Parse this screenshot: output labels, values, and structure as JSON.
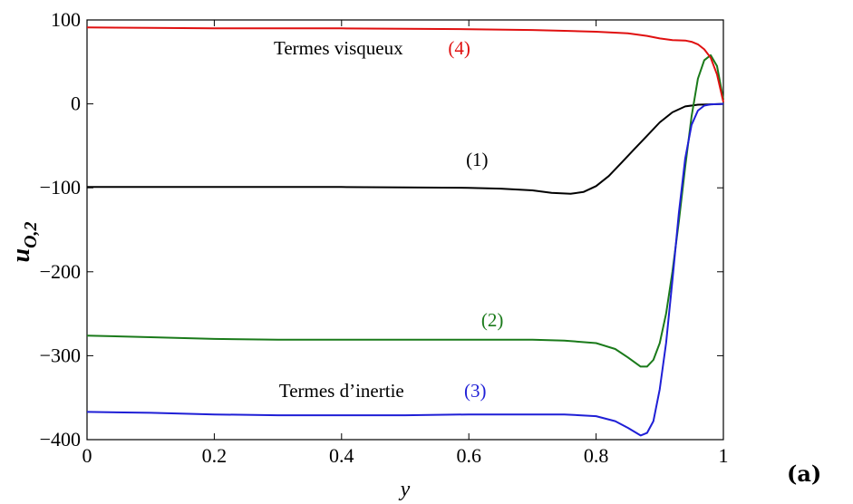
{
  "chart_data": {
    "type": "line",
    "xlabel": "y",
    "ylabel": "u",
    "ylabel_subscript": "O,2",
    "xlim": [
      0,
      1
    ],
    "ylim": [
      -400,
      100
    ],
    "x_ticks": [
      0,
      0.2,
      0.4,
      0.6,
      0.8,
      1
    ],
    "x_tick_labels": [
      "0",
      "0.2",
      "0.4",
      "0.6",
      "0.8",
      "1"
    ],
    "y_ticks": [
      100,
      0,
      -100,
      -200,
      -300,
      -400
    ],
    "y_tick_labels": [
      "100",
      "0",
      "−100",
      "−200",
      "−300",
      "−400"
    ],
    "grid": false,
    "series": [
      {
        "id": "s1",
        "color": "#000000",
        "points": [
          [
            0,
            -99
          ],
          [
            0.1,
            -99
          ],
          [
            0.2,
            -99
          ],
          [
            0.3,
            -99
          ],
          [
            0.4,
            -99
          ],
          [
            0.5,
            -99.5
          ],
          [
            0.6,
            -100
          ],
          [
            0.65,
            -101
          ],
          [
            0.7,
            -103
          ],
          [
            0.73,
            -106
          ],
          [
            0.76,
            -107
          ],
          [
            0.78,
            -105
          ],
          [
            0.8,
            -98
          ],
          [
            0.82,
            -86
          ],
          [
            0.84,
            -70
          ],
          [
            0.86,
            -54
          ],
          [
            0.88,
            -38
          ],
          [
            0.9,
            -22
          ],
          [
            0.92,
            -10
          ],
          [
            0.94,
            -3
          ],
          [
            0.96,
            -1
          ],
          [
            0.98,
            -0.5
          ],
          [
            1,
            0
          ]
        ]
      },
      {
        "id": "s2",
        "color": "#1a7a1a",
        "points": [
          [
            0,
            -276
          ],
          [
            0.1,
            -278
          ],
          [
            0.2,
            -280
          ],
          [
            0.3,
            -281
          ],
          [
            0.4,
            -281
          ],
          [
            0.5,
            -281
          ],
          [
            0.6,
            -281
          ],
          [
            0.7,
            -281
          ],
          [
            0.75,
            -282
          ],
          [
            0.8,
            -285
          ],
          [
            0.83,
            -292
          ],
          [
            0.85,
            -302
          ],
          [
            0.87,
            -313
          ],
          [
            0.88,
            -313
          ],
          [
            0.89,
            -305
          ],
          [
            0.9,
            -285
          ],
          [
            0.91,
            -250
          ],
          [
            0.92,
            -200
          ],
          [
            0.93,
            -140
          ],
          [
            0.94,
            -75
          ],
          [
            0.95,
            -15
          ],
          [
            0.96,
            30
          ],
          [
            0.97,
            52
          ],
          [
            0.98,
            58
          ],
          [
            0.99,
            45
          ],
          [
            1,
            5
          ]
        ]
      },
      {
        "id": "s3",
        "color": "#1f1fd6",
        "points": [
          [
            0,
            -367
          ],
          [
            0.1,
            -368
          ],
          [
            0.2,
            -370
          ],
          [
            0.3,
            -371
          ],
          [
            0.4,
            -371
          ],
          [
            0.5,
            -371
          ],
          [
            0.6,
            -370
          ],
          [
            0.7,
            -370
          ],
          [
            0.75,
            -370
          ],
          [
            0.8,
            -372
          ],
          [
            0.83,
            -378
          ],
          [
            0.85,
            -386
          ],
          [
            0.87,
            -395
          ],
          [
            0.88,
            -392
          ],
          [
            0.89,
            -378
          ],
          [
            0.9,
            -340
          ],
          [
            0.91,
            -285
          ],
          [
            0.92,
            -210
          ],
          [
            0.93,
            -130
          ],
          [
            0.94,
            -65
          ],
          [
            0.95,
            -25
          ],
          [
            0.96,
            -8
          ],
          [
            0.97,
            -2
          ],
          [
            0.98,
            -0.5
          ],
          [
            1,
            0
          ]
        ]
      },
      {
        "id": "s4",
        "color": "#e01010",
        "points": [
          [
            0,
            91
          ],
          [
            0.1,
            90.5
          ],
          [
            0.2,
            90
          ],
          [
            0.3,
            90
          ],
          [
            0.4,
            90
          ],
          [
            0.5,
            89.5
          ],
          [
            0.6,
            89
          ],
          [
            0.7,
            88
          ],
          [
            0.75,
            87
          ],
          [
            0.8,
            86
          ],
          [
            0.85,
            84
          ],
          [
            0.88,
            81
          ],
          [
            0.9,
            78
          ],
          [
            0.92,
            76
          ],
          [
            0.94,
            75.5
          ],
          [
            0.95,
            74
          ],
          [
            0.96,
            71
          ],
          [
            0.97,
            65
          ],
          [
            0.98,
            55
          ],
          [
            0.99,
            35
          ],
          [
            1,
            2
          ]
        ]
      }
    ],
    "annotations": [
      {
        "id": "visq",
        "text": "Termes visqueux",
        "x": 0.395,
        "y": 59,
        "color": "#000000"
      },
      {
        "id": "n4",
        "text": "(4)",
        "x": 0.585,
        "y": 59,
        "color": "#e01010"
      },
      {
        "id": "n1",
        "text": "(1)",
        "x": 0.613,
        "y": -74,
        "color": "#000000"
      },
      {
        "id": "n2",
        "text": "(2)",
        "x": 0.637,
        "y": -265,
        "color": "#1a7a1a"
      },
      {
        "id": "inert",
        "text": "Termes d’inertie",
        "x": 0.4,
        "y": -349,
        "color": "#000000"
      },
      {
        "id": "n3",
        "text": "(3)",
        "x": 0.61,
        "y": -349,
        "color": "#1f1fd6"
      }
    ]
  },
  "panel_label": "(a)"
}
